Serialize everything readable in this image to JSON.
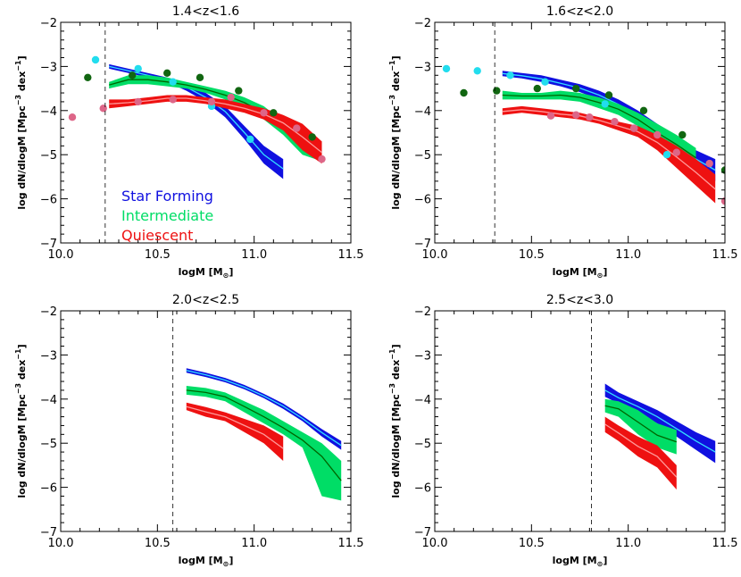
{
  "colors": {
    "star_forming": "#1010e0",
    "intermediate": "#00dd66",
    "quiescent": "#ee1111",
    "line_sf": "#33ddff",
    "line_int": "#006600",
    "line_q": "#ff9999",
    "pt_sf": "#22ddee",
    "pt_int": "#116611",
    "pt_q": "#dd6688"
  },
  "legend": {
    "star_forming": "Star Forming",
    "intermediate": "Intermediate",
    "quiescent": "Quiescent"
  },
  "chart_data": [
    {
      "type": "area",
      "title": "1.4<z<1.6",
      "xlabel": "logM [M",
      "xlabel_sub": "⊙",
      "xlabel_end": "]",
      "ylabel": "log dN/dlogM [Mpc",
      "ylabel_sup": "−3",
      "ylabel_mid": " dex",
      "ylabel_sup2": "−1",
      "ylabel_end": "]",
      "xlim": [
        10.0,
        11.5
      ],
      "ylim": [
        -7,
        -2
      ],
      "xticks": [
        "10.0",
        "10.5",
        "11.0",
        "11.5"
      ],
      "yticks": [
        "−2",
        "−3",
        "−4",
        "−5",
        "−6",
        "−7"
      ],
      "completeness_limit": 10.23,
      "show_legend": true,
      "series": [
        {
          "key": "star_forming",
          "x": [
            10.25,
            10.35,
            10.45,
            10.55,
            10.65,
            10.75,
            10.85,
            10.95,
            11.05,
            11.15
          ],
          "upper": [
            -2.95,
            -3.05,
            -3.15,
            -3.25,
            -3.4,
            -3.6,
            -3.9,
            -4.35,
            -4.8,
            -5.1
          ],
          "lower": [
            -3.05,
            -3.15,
            -3.25,
            -3.35,
            -3.55,
            -3.8,
            -4.15,
            -4.65,
            -5.2,
            -5.55
          ],
          "mid": [
            -3.0,
            -3.1,
            -3.2,
            -3.3,
            -3.47,
            -3.7,
            -4.02,
            -4.5,
            -5.0,
            -5.32
          ]
        },
        {
          "key": "intermediate",
          "x": [
            10.25,
            10.35,
            10.45,
            10.55,
            10.65,
            10.75,
            10.85,
            10.95,
            11.05,
            11.15,
            11.25,
            11.35
          ],
          "upper": [
            -3.35,
            -3.2,
            -3.2,
            -3.25,
            -3.35,
            -3.45,
            -3.55,
            -3.7,
            -3.9,
            -4.25,
            -4.4,
            -4.7
          ],
          "lower": [
            -3.5,
            -3.4,
            -3.4,
            -3.45,
            -3.5,
            -3.6,
            -3.75,
            -3.95,
            -4.2,
            -4.55,
            -5.0,
            -5.15
          ],
          "mid": [
            -3.42,
            -3.3,
            -3.3,
            -3.35,
            -3.42,
            -3.52,
            -3.65,
            -3.82,
            -4.05,
            -4.4,
            -4.7,
            -4.95
          ]
        },
        {
          "key": "quiescent",
          "x": [
            10.25,
            10.35,
            10.45,
            10.55,
            10.65,
            10.75,
            10.85,
            10.95,
            11.05,
            11.15,
            11.25,
            11.35
          ],
          "upper": [
            -3.75,
            -3.75,
            -3.7,
            -3.65,
            -3.65,
            -3.7,
            -3.75,
            -3.85,
            -3.95,
            -4.1,
            -4.3,
            -4.7
          ],
          "lower": [
            -3.95,
            -3.9,
            -3.85,
            -3.8,
            -3.8,
            -3.85,
            -3.95,
            -4.05,
            -4.2,
            -4.45,
            -4.9,
            -5.2
          ],
          "mid": [
            -3.85,
            -3.82,
            -3.78,
            -3.72,
            -3.72,
            -3.78,
            -3.85,
            -3.95,
            -4.08,
            -4.28,
            -4.6,
            -4.95
          ]
        }
      ],
      "points": [
        {
          "key": "pt_sf",
          "x": [
            10.18,
            10.4,
            10.58,
            10.78,
            10.98
          ],
          "y": [
            -2.85,
            -3.05,
            -3.35,
            -3.9,
            -4.65
          ]
        },
        {
          "key": "pt_int",
          "x": [
            10.14,
            10.37,
            10.55,
            10.72,
            10.92,
            11.1,
            11.3
          ],
          "y": [
            -3.25,
            -3.2,
            -3.15,
            -3.25,
            -3.55,
            -4.05,
            -4.6
          ]
        },
        {
          "key": "pt_q",
          "x": [
            10.06,
            10.22,
            10.4,
            10.58,
            10.78,
            10.88,
            11.05,
            11.22,
            11.35
          ],
          "y": [
            -4.15,
            -3.95,
            -3.8,
            -3.75,
            -3.8,
            -3.7,
            -4.05,
            -4.4,
            -5.1
          ]
        }
      ]
    },
    {
      "type": "area",
      "title": "1.6<z<2.0",
      "xlabel": "logM [M",
      "xlabel_sub": "⊙",
      "xlabel_end": "]",
      "ylabel": "log dN/dlogM [Mpc",
      "ylabel_sup": "−3",
      "ylabel_mid": " dex",
      "ylabel_sup2": "−1",
      "ylabel_end": "]",
      "xlim": [
        10.0,
        11.5
      ],
      "ylim": [
        -7,
        -2
      ],
      "xticks": [
        "10.0",
        "10.5",
        "11.0",
        "11.5"
      ],
      "yticks": [
        "−2",
        "−3",
        "−4",
        "−5",
        "−6",
        "−7"
      ],
      "completeness_limit": 10.31,
      "show_legend": false,
      "series": [
        {
          "key": "star_forming",
          "x": [
            10.35,
            10.45,
            10.55,
            10.65,
            10.75,
            10.85,
            10.95,
            11.05,
            11.15,
            11.25,
            11.35,
            11.45
          ],
          "upper": [
            -3.1,
            -3.15,
            -3.2,
            -3.3,
            -3.4,
            -3.55,
            -3.75,
            -4.0,
            -4.3,
            -4.6,
            -4.9,
            -5.1
          ],
          "lower": [
            -3.22,
            -3.27,
            -3.35,
            -3.45,
            -3.58,
            -3.75,
            -3.98,
            -4.25,
            -4.6,
            -4.95,
            -5.3,
            -5.6
          ],
          "mid": [
            -3.16,
            -3.21,
            -3.28,
            -3.38,
            -3.49,
            -3.65,
            -3.86,
            -4.12,
            -4.45,
            -4.77,
            -5.1,
            -5.35
          ]
        },
        {
          "key": "intermediate",
          "x": [
            10.35,
            10.45,
            10.55,
            10.65,
            10.75,
            10.85,
            10.95,
            11.05,
            11.15,
            11.25,
            11.35
          ],
          "upper": [
            -3.55,
            -3.6,
            -3.6,
            -3.55,
            -3.6,
            -3.7,
            -3.85,
            -4.05,
            -4.3,
            -4.55,
            -4.85
          ],
          "lower": [
            -3.75,
            -3.75,
            -3.75,
            -3.75,
            -3.8,
            -3.95,
            -4.1,
            -4.35,
            -4.7,
            -5.0,
            -5.3
          ],
          "mid": [
            -3.65,
            -3.67,
            -3.67,
            -3.65,
            -3.7,
            -3.82,
            -3.97,
            -4.2,
            -4.5,
            -4.77,
            -5.07
          ]
        },
        {
          "key": "quiescent",
          "x": [
            10.35,
            10.45,
            10.55,
            10.65,
            10.75,
            10.85,
            10.95,
            11.05,
            11.15,
            11.25,
            11.35,
            11.45
          ],
          "upper": [
            -3.95,
            -3.9,
            -3.95,
            -4.0,
            -4.05,
            -4.15,
            -4.25,
            -4.35,
            -4.55,
            -4.8,
            -5.1,
            -5.45
          ],
          "lower": [
            -4.1,
            -4.05,
            -4.1,
            -4.15,
            -4.2,
            -4.3,
            -4.45,
            -4.6,
            -4.9,
            -5.3,
            -5.7,
            -6.1
          ],
          "mid": [
            -4.02,
            -3.98,
            -4.02,
            -4.08,
            -4.12,
            -4.22,
            -4.35,
            -4.48,
            -4.72,
            -5.05,
            -5.4,
            -5.78
          ]
        }
      ],
      "points": [
        {
          "key": "pt_sf",
          "x": [
            10.06,
            10.22,
            10.39,
            10.57,
            10.88,
            11.03,
            11.2
          ],
          "y": [
            -3.05,
            -3.1,
            -3.2,
            -3.35,
            -3.85,
            -4.4,
            -5.0
          ]
        },
        {
          "key": "pt_int",
          "x": [
            10.15,
            10.32,
            10.53,
            10.73,
            10.9,
            11.08,
            11.28,
            11.5
          ],
          "y": [
            -3.6,
            -3.55,
            -3.5,
            -3.5,
            -3.65,
            -4.0,
            -4.55,
            -5.35
          ]
        },
        {
          "key": "pt_q",
          "x": [
            10.6,
            10.73,
            10.8,
            10.93,
            11.03,
            11.15,
            11.25,
            11.42,
            11.5
          ],
          "y": [
            -4.12,
            -4.1,
            -4.15,
            -4.25,
            -4.4,
            -4.55,
            -4.95,
            -5.2,
            -6.05
          ]
        }
      ]
    },
    {
      "type": "area",
      "title": "2.0<z<2.5",
      "xlabel": "logM [M",
      "xlabel_sub": "⊙",
      "xlabel_end": "]",
      "ylabel": "log dN/dlogM [Mpc",
      "ylabel_sup": "−3",
      "ylabel_mid": " dex",
      "ylabel_sup2": "−1",
      "ylabel_end": "]",
      "xlim": [
        10.0,
        11.5
      ],
      "ylim": [
        -7,
        -2
      ],
      "xticks": [
        "10.0",
        "10.5",
        "11.0",
        "11.5"
      ],
      "yticks": [
        "−2",
        "−3",
        "−4",
        "−5",
        "−6",
        "−7"
      ],
      "completeness_limit": 10.58,
      "show_legend": false,
      "series": [
        {
          "key": "star_forming",
          "x": [
            10.65,
            10.75,
            10.85,
            10.95,
            11.05,
            11.15,
            11.25,
            11.35,
            11.45
          ],
          "upper": [
            -3.3,
            -3.4,
            -3.52,
            -3.68,
            -3.88,
            -4.1,
            -4.38,
            -4.68,
            -4.95
          ],
          "lower": [
            -3.4,
            -3.5,
            -3.62,
            -3.78,
            -3.98,
            -4.22,
            -4.5,
            -4.85,
            -5.15
          ],
          "mid": [
            -3.35,
            -3.45,
            -3.57,
            -3.73,
            -3.93,
            -4.16,
            -4.44,
            -4.76,
            -5.05
          ]
        },
        {
          "key": "intermediate",
          "x": [
            10.65,
            10.75,
            10.85,
            10.95,
            11.05,
            11.15,
            11.25,
            11.35,
            11.45
          ],
          "upper": [
            -3.7,
            -3.75,
            -3.85,
            -4.05,
            -4.25,
            -4.5,
            -4.75,
            -5.0,
            -5.4
          ],
          "lower": [
            -3.9,
            -3.95,
            -4.05,
            -4.3,
            -4.55,
            -4.8,
            -5.1,
            -6.2,
            -6.3
          ],
          "mid": [
            -3.8,
            -3.85,
            -3.95,
            -4.17,
            -4.4,
            -4.65,
            -4.93,
            -5.3,
            -5.85
          ]
        },
        {
          "key": "quiescent",
          "x": [
            10.65,
            10.75,
            10.85,
            10.95,
            11.05,
            11.15
          ],
          "upper": [
            -4.08,
            -4.18,
            -4.3,
            -4.45,
            -4.6,
            -4.85
          ],
          "lower": [
            -4.25,
            -4.4,
            -4.5,
            -4.75,
            -5.0,
            -5.4
          ],
          "mid": [
            -4.17,
            -4.29,
            -4.4,
            -4.6,
            -4.8,
            -5.12
          ]
        }
      ],
      "points": []
    },
    {
      "type": "area",
      "title": "2.5<z<3.0",
      "xlabel": "logM [M",
      "xlabel_sub": "⊙",
      "xlabel_end": "]",
      "ylabel": "log dN/dlogM [Mpc",
      "ylabel_sup": "−3",
      "ylabel_mid": " dex",
      "ylabel_sup2": "−1",
      "ylabel_end": "]",
      "xlim": [
        10.0,
        11.5
      ],
      "ylim": [
        -7,
        -2
      ],
      "xticks": [
        "10.0",
        "10.5",
        "11.0",
        "11.5"
      ],
      "yticks": [
        "−2",
        "−3",
        "−4",
        "−5",
        "−6",
        "−7"
      ],
      "completeness_limit": 10.81,
      "show_legend": false,
      "series": [
        {
          "key": "star_forming",
          "x": [
            10.88,
            10.95,
            11.05,
            11.15,
            11.25,
            11.35,
            11.45
          ],
          "upper": [
            -3.65,
            -3.85,
            -4.05,
            -4.25,
            -4.5,
            -4.75,
            -4.95
          ],
          "lower": [
            -3.95,
            -4.1,
            -4.3,
            -4.55,
            -4.85,
            -5.15,
            -5.45
          ],
          "mid": [
            -3.8,
            -3.97,
            -4.17,
            -4.4,
            -4.67,
            -4.95,
            -5.2
          ]
        },
        {
          "key": "intermediate",
          "x": [
            10.88,
            10.95,
            11.05,
            11.15,
            11.25
          ],
          "upper": [
            -4.0,
            -4.05,
            -4.25,
            -4.55,
            -4.7
          ],
          "lower": [
            -4.3,
            -4.4,
            -4.8,
            -5.1,
            -5.25
          ],
          "mid": [
            -4.15,
            -4.22,
            -4.52,
            -4.82,
            -4.97
          ]
        },
        {
          "key": "quiescent",
          "x": [
            10.88,
            10.95,
            11.05,
            11.15,
            11.25
          ],
          "upper": [
            -4.4,
            -4.6,
            -4.85,
            -5.05,
            -5.5
          ],
          "lower": [
            -4.75,
            -4.95,
            -5.3,
            -5.55,
            -6.05
          ],
          "mid": [
            -4.57,
            -4.77,
            -5.07,
            -5.3,
            -5.77
          ]
        }
      ],
      "points": []
    }
  ]
}
